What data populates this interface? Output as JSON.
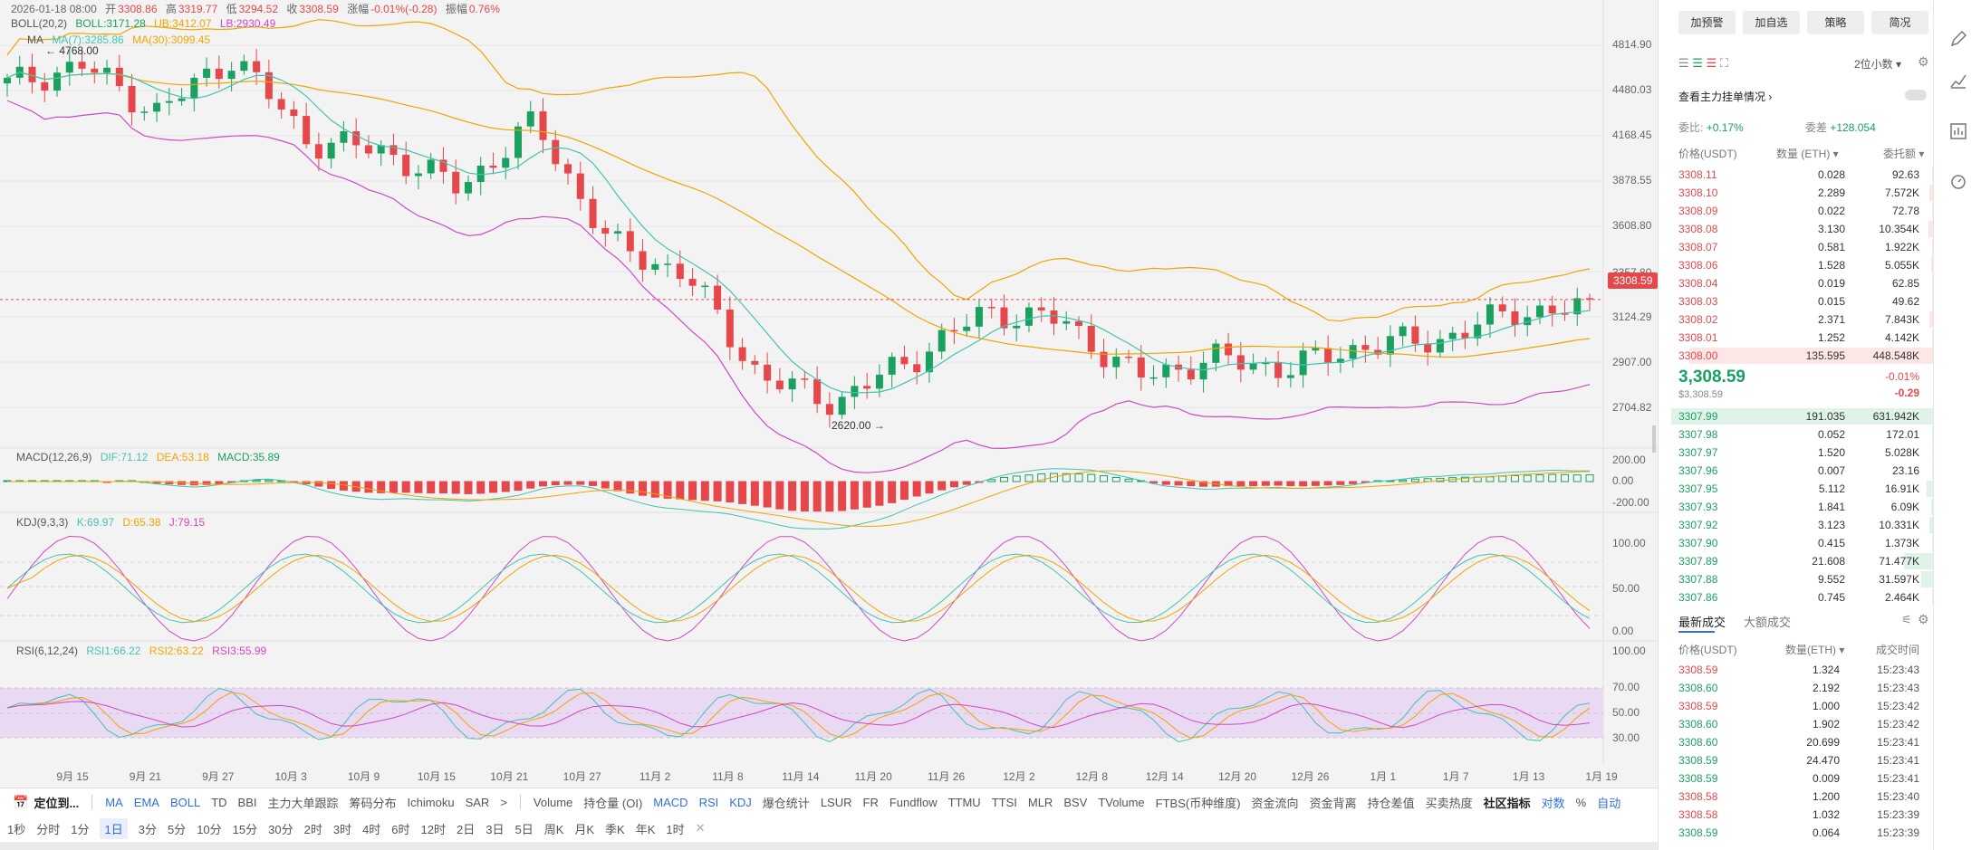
{
  "header": {
    "date": "2026-01-18 08:00",
    "open_label": "开",
    "open": "3308.86",
    "high_label": "高",
    "high": "3319.77",
    "low_label": "低",
    "low": "3294.52",
    "close_label": "收",
    "close": "3308.59",
    "change_label": "涨幅",
    "change": "-0.01%(-0.28)",
    "amp_label": "振幅",
    "amp": "0.76%"
  },
  "boll": {
    "name": "BOLL(20,2)",
    "boll": "BOLL:3171.28",
    "ub": "UB:3412.07",
    "lb": "LB:2930.49"
  },
  "ma": {
    "name": "MA",
    "ma7": "MA(7):3285.86",
    "ma30": "MA(30):3099.45"
  },
  "macd": {
    "name": "MACD(12,26,9)",
    "dif": "DIF:71.12",
    "dea": "DEA:53.18",
    "macd": "MACD:35.89"
  },
  "kdj": {
    "name": "KDJ(9,3,3)",
    "k": "K:69.97",
    "d": "D:65.38",
    "j": "J:79.15"
  },
  "rsi": {
    "name": "RSI(6,12,24)",
    "rsi1": "RSI1:66.22",
    "rsi2": "RSI2:63.22",
    "rsi3": "RSI3:55.99"
  },
  "annotations": {
    "high_marker": "4768.00",
    "low_marker": "2620.00"
  },
  "price_axis": [
    "4814.90",
    "4480.03",
    "4168.45",
    "3878.55",
    "3608.80",
    "3357.80",
    "3124.29",
    "2907.00",
    "2704.82"
  ],
  "current_price_badge": "3308.59",
  "macd_axis": [
    "200.00",
    "0.00",
    "-200.00"
  ],
  "kdj_axis": [
    "100.00",
    "50.00",
    "0.00"
  ],
  "rsi_axis": [
    "100.00",
    "70.00",
    "50.00",
    "30.00"
  ],
  "date_axis": [
    "9月 15",
    "9月 21",
    "9月 27",
    "10月 3",
    "10月 9",
    "10月 15",
    "10月 21",
    "10月 27",
    "11月 2",
    "11月 8",
    "11月 14",
    "11月 20",
    "11月 26",
    "12月 2",
    "12月 8",
    "12月 14",
    "12月 20",
    "12月 26",
    "1月 1",
    "1月 7",
    "1月 13",
    "1月 19"
  ],
  "chart_data": {
    "type": "candlestick",
    "x": [
      "9月 15",
      "9月 21",
      "9月 27",
      "10月 3",
      "10月 9",
      "10月 15",
      "10月 21",
      "10月 27",
      "11月 2",
      "11月 8",
      "11月 14",
      "11月 20",
      "11月 26",
      "12月 2",
      "12月 8",
      "12月 14",
      "12月 20",
      "12月 26",
      "1月 1",
      "1月 7",
      "1月 13",
      "1月 19"
    ],
    "close": [
      4500,
      4600,
      4350,
      4650,
      4200,
      4150,
      3950,
      4300,
      3650,
      3500,
      2950,
      2820,
      3050,
      3300,
      3250,
      2950,
      3050,
      3000,
      3120,
      3150,
      3300,
      3308.59
    ],
    "ylim": [
      2650,
      4850
    ],
    "colors": {
      "up": "#1aa160",
      "down": "#e6474b",
      "ma7": "#42c3b1",
      "ma30": "#f0a500",
      "boll_ub": "#f0a500",
      "boll_lb": "#d048c8"
    }
  },
  "tabs_indicators": [
    "MA",
    "EMA",
    "BOLL",
    "TD",
    "BBI",
    "主力大单跟踪",
    "筹码分布",
    "Ichimoku",
    "SAR",
    ">",
    "Volume",
    "持仓量 (OI)",
    "MACD",
    "RSI",
    "KDJ",
    "爆仓统计",
    "LSUR",
    "FR",
    "Fundflow",
    "TTMU",
    "TTSI",
    "MLR",
    "BSV",
    "TVolume",
    "FTBS(币种维度)",
    "资金流向",
    "资金背离",
    "持仓差值",
    "买卖热度",
    "社区指标",
    "对数",
    "%",
    "自动"
  ],
  "locate_label": "定位到...",
  "intervals": [
    "1秒",
    "分时",
    "1分",
    "1日",
    "3分",
    "5分",
    "10分",
    "15分",
    "30分",
    "2时",
    "3时",
    "4时",
    "6时",
    "12时",
    "2日",
    "3日",
    "5日",
    "周K",
    "月K",
    "季K",
    "年K",
    "1时"
  ],
  "panel": {
    "buttons": [
      "加预警",
      "加自选",
      "策略",
      "简况"
    ],
    "precision": "2位小数",
    "main_orders_label": "查看主力挂单情况",
    "ratio_label": "委比:",
    "ratio_value": "+0.17%",
    "diff_label": "委差",
    "diff_value": "+128.054",
    "col_price": "价格(USDT)",
    "col_qty": "数量 (ETH)",
    "col_total": "委托额",
    "asks": [
      {
        "p": "3308.11",
        "q": "0.028",
        "t": "92.63"
      },
      {
        "p": "3308.10",
        "q": "2.289",
        "t": "7.572K"
      },
      {
        "p": "3308.09",
        "q": "0.022",
        "t": "72.78"
      },
      {
        "p": "3308.08",
        "q": "3.130",
        "t": "10.354K"
      },
      {
        "p": "3308.07",
        "q": "0.581",
        "t": "1.922K"
      },
      {
        "p": "3308.06",
        "q": "1.528",
        "t": "5.055K"
      },
      {
        "p": "3308.04",
        "q": "0.019",
        "t": "62.85"
      },
      {
        "p": "3308.03",
        "q": "0.015",
        "t": "49.62"
      },
      {
        "p": "3308.02",
        "q": "2.371",
        "t": "7.843K"
      },
      {
        "p": "3308.01",
        "q": "1.252",
        "t": "4.142K"
      },
      {
        "p": "3308.00",
        "q": "135.595",
        "t": "448.548K"
      }
    ],
    "last_price": "3,308.59",
    "last_price_usd": "$3,308.59",
    "last_change_pct": "-0.01%",
    "last_change": "-0.29",
    "bids": [
      {
        "p": "3307.99",
        "q": "191.035",
        "t": "631.942K"
      },
      {
        "p": "3307.98",
        "q": "0.052",
        "t": "172.01"
      },
      {
        "p": "3307.97",
        "q": "1.520",
        "t": "5.028K"
      },
      {
        "p": "3307.96",
        "q": "0.007",
        "t": "23.16"
      },
      {
        "p": "3307.95",
        "q": "5.112",
        "t": "16.91K"
      },
      {
        "p": "3307.93",
        "q": "1.841",
        "t": "6.09K"
      },
      {
        "p": "3307.92",
        "q": "3.123",
        "t": "10.331K"
      },
      {
        "p": "3307.90",
        "q": "0.415",
        "t": "1.373K"
      },
      {
        "p": "3307.89",
        "q": "21.608",
        "t": "71.477K"
      },
      {
        "p": "3307.88",
        "q": "9.552",
        "t": "31.597K"
      },
      {
        "p": "3307.86",
        "q": "0.745",
        "t": "2.464K"
      }
    ],
    "trades_tab": "最新成交",
    "bigtrades_tab": "大额成交",
    "tr_col_price": "价格(USDT)",
    "tr_col_qty": "数量(ETH)",
    "tr_col_time": "成交时间",
    "trades": [
      {
        "p": "3308.59",
        "q": "1.324",
        "t": "15:23:43",
        "side": "sell"
      },
      {
        "p": "3308.60",
        "q": "2.192",
        "t": "15:23:43",
        "side": "buy"
      },
      {
        "p": "3308.59",
        "q": "1.000",
        "t": "15:23:42",
        "side": "sell"
      },
      {
        "p": "3308.60",
        "q": "1.902",
        "t": "15:23:42",
        "side": "buy"
      },
      {
        "p": "3308.60",
        "q": "20.699",
        "t": "15:23:41",
        "side": "buy"
      },
      {
        "p": "3308.59",
        "q": "24.470",
        "t": "15:23:41",
        "side": "buy"
      },
      {
        "p": "3308.59",
        "q": "0.009",
        "t": "15:23:41",
        "side": "buy"
      },
      {
        "p": "3308.58",
        "q": "1.200",
        "t": "15:23:40",
        "side": "sell"
      },
      {
        "p": "3308.58",
        "q": "1.032",
        "t": "15:23:39",
        "side": "sell"
      },
      {
        "p": "3308.59",
        "q": "0.064",
        "t": "15:23:39",
        "side": "buy"
      }
    ]
  }
}
